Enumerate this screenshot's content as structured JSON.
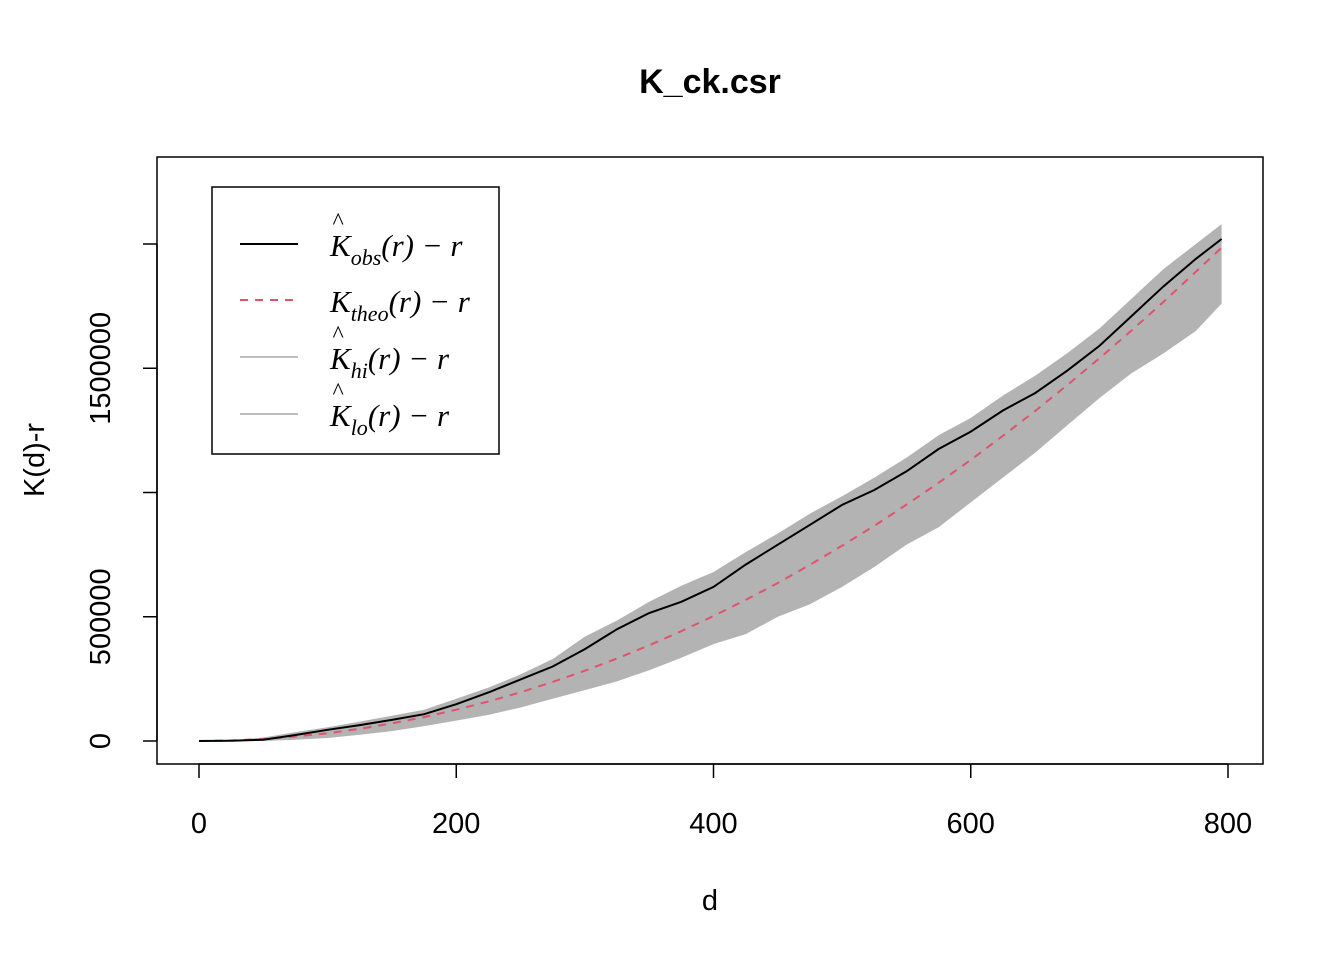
{
  "chart_data": {
    "type": "line",
    "title": "K_ck.csr",
    "xlabel": "d",
    "ylabel": "K(d)-r",
    "xlim": [
      0,
      800
    ],
    "ylim": [
      0,
      2000000
    ],
    "x_ticks": [
      "0",
      "200",
      "400",
      "600",
      "800"
    ],
    "y_ticks": [
      "0",
      "500000",
      "1500000"
    ],
    "grid": false,
    "legend_position": "top-left",
    "legend": [
      {
        "hat": "^",
        "base": "K",
        "sub": "obs",
        "tail": "(r) − r",
        "style": "solid",
        "color": "#000000"
      },
      {
        "hat": "",
        "base": "K",
        "sub": "theo",
        "tail": "(r) − r",
        "style": "dashed",
        "color": "#DF536B"
      },
      {
        "hat": "^",
        "base": "K",
        "sub": "hi",
        "tail": "(r) − r",
        "style": "solid",
        "color": "#BEBEBE"
      },
      {
        "hat": "^",
        "base": "K",
        "sub": "lo",
        "tail": "(r) − r",
        "style": "solid",
        "color": "#BEBEBE"
      }
    ],
    "colors": {
      "obs": "#000000",
      "theo": "#DF536B",
      "envelope": "#B3B3B3",
      "legend_envelope_line": "#BEBEBE"
    },
    "x": [
      0,
      25,
      50,
      75,
      100,
      125,
      150,
      175,
      200,
      225,
      250,
      275,
      300,
      325,
      350,
      375,
      400,
      425,
      450,
      475,
      500,
      525,
      550,
      575,
      600,
      625,
      650,
      675,
      700,
      725,
      750,
      775,
      795
    ],
    "series": [
      {
        "key": "obs",
        "values": [
          0,
          1200,
          5000,
          24000,
          45000,
          64000,
          85000,
          108000,
          148000,
          195000,
          248000,
          300000,
          370000,
          450000,
          515000,
          560000,
          620000,
          710000,
          790000,
          870000,
          950000,
          1010000,
          1085000,
          1175000,
          1245000,
          1330000,
          1400000,
          1490000,
          1590000,
          1710000,
          1830000,
          1940000,
          2020000
        ]
      },
      {
        "key": "theo",
        "values": [
          0,
          2000,
          8000,
          18000,
          31000,
          49000,
          71000,
          96000,
          126000,
          159000,
          196000,
          238000,
          283000,
          332000,
          385000,
          442000,
          503000,
          568000,
          636000,
          709000,
          786000,
          866000,
          951000,
          1039000,
          1131000,
          1228000,
          1328000,
          1432000,
          1540000,
          1652000,
          1768000,
          1888000,
          1985000
        ]
      },
      {
        "key": "hi",
        "values": [
          0,
          3000,
          14000,
          36000,
          55000,
          78000,
          102000,
          126000,
          170000,
          215000,
          268000,
          330000,
          420000,
          485000,
          560000,
          625000,
          680000,
          760000,
          835000,
          915000,
          985000,
          1060000,
          1140000,
          1230000,
          1300000,
          1390000,
          1470000,
          1560000,
          1660000,
          1780000,
          1900000,
          2000000,
          2080000
        ]
      },
      {
        "key": "lo",
        "values": [
          0,
          0,
          0,
          5000,
          12000,
          25000,
          40000,
          60000,
          82000,
          105000,
          135000,
          170000,
          205000,
          240000,
          285000,
          335000,
          390000,
          430000,
          500000,
          550000,
          620000,
          700000,
          790000,
          860000,
          960000,
          1060000,
          1160000,
          1270000,
          1380000,
          1480000,
          1560000,
          1650000,
          1760000
        ]
      }
    ]
  }
}
